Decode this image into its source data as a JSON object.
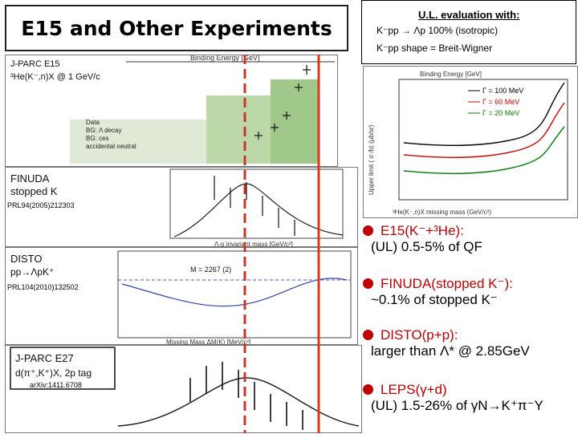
{
  "title": "E15 and Other Experiments",
  "ul_box": {
    "heading": "U.L. evaluation with:",
    "line1": "K⁻pp → Λp 100% (isotropic)",
    "line2": "K⁻pp shape = Breit-Wigner"
  },
  "panels": {
    "jparc_e15": {
      "label1": "J-PARC E15",
      "label2": "³He(K⁻,n)X @ 1 GeV/c",
      "axis_top": "Binding Energy [GeV]",
      "legend": [
        "Data",
        "BG: Λ decay",
        "BG: ces",
        "accidental neutral"
      ]
    },
    "finuda": {
      "label1": "FINUDA",
      "label2": "stopped K",
      "ref": "PRL94(2005)212303",
      "xaxis": "Λ-p invariant mass [GeV/c²]"
    },
    "disto": {
      "label1": "DISTO",
      "label2": "pp→ΛpK⁺",
      "ref": "PRL104(2010)132502",
      "mass_label": "M = 2267 (2)",
      "xaxis": "Missing Mass ΔM(K) [MeV/c²]"
    },
    "jparc_e27": {
      "label1": "J-PARC E27",
      "label2": "d(π⁺,K⁺)X, 2p tag",
      "ref": "arXiv:1411.6708"
    },
    "ul_plot": {
      "title": "Binding Energy [GeV]",
      "ylabel": "Upper limit ( σ /b) (μb/sr)",
      "xlabel": "³He(K⁻,n)X missing mass (GeV/c²)",
      "legend": [
        "Γ = 100 MeV",
        "Γ = 60 MeV",
        "Γ = 20 MeV"
      ],
      "colors": [
        "#000000",
        "#d40000",
        "#008000"
      ]
    }
  },
  "bullets": [
    {
      "head": "E15(K⁻+³He):",
      "body": "(UL) 0.5-5% of QF"
    },
    {
      "head": "FINUDA(stopped K⁻):",
      "body": "~0.1% of stopped K⁻"
    },
    {
      "head": "DISTO(p+p):",
      "body": "larger than Λ* @ 2.85GeV"
    },
    {
      "head": "LEPS(γ+d)",
      "body": "(UL) 1.5-26% of γN→K⁺π⁻Y"
    }
  ],
  "colors": {
    "accent_red": "#c00000",
    "line_red": "#d9381e",
    "dash_red": "#c0392b"
  }
}
